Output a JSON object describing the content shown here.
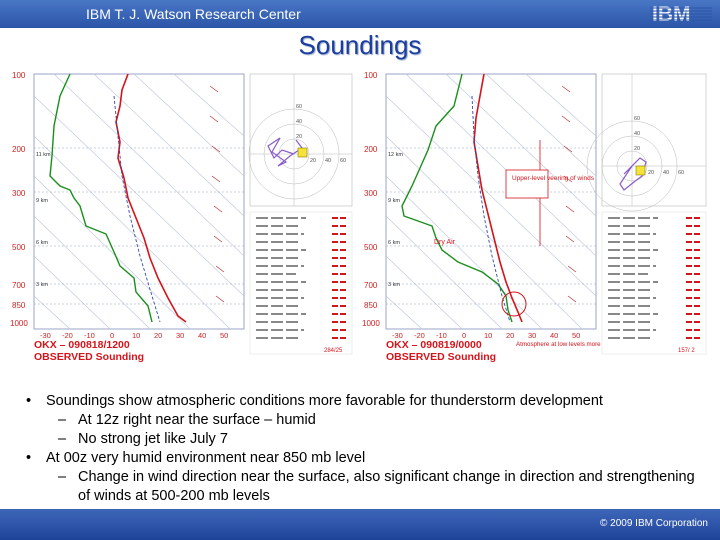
{
  "header": {
    "org": "IBM T. J. Watson Research Center",
    "logo_text": "IBM",
    "title": "Soundings"
  },
  "soundings": [
    {
      "station_label": "OKX – 090818/1200",
      "observed_label": "OBSERVED Sounding",
      "pressure_ticks": [
        "100",
        "200",
        "300",
        "500",
        "700",
        "850",
        "1000"
      ],
      "height_labels": [
        "11 km",
        "9 km",
        "6 km",
        "3 km"
      ],
      "temp_ticks": [
        "-30",
        "-20",
        "-10",
        "0",
        "10",
        "20",
        "30",
        "40",
        "50"
      ],
      "hodograph_rings": [
        "60",
        "40",
        "20",
        "20",
        "40",
        "60"
      ],
      "footer_value": "284/25",
      "annotations": []
    },
    {
      "station_label": "OKX – 090819/0000",
      "observed_label": "OBSERVED Sounding",
      "pressure_ticks": [
        "100",
        "200",
        "300",
        "500",
        "700",
        "850",
        "1000"
      ],
      "height_labels": [
        "12 km",
        "9 km",
        "6 km",
        "3 km"
      ],
      "temp_ticks": [
        "-30",
        "-20",
        "-10",
        "0",
        "10",
        "20",
        "30",
        "40",
        "50"
      ],
      "hodograph_rings": [
        "60",
        "40",
        "20",
        "20",
        "40",
        "60"
      ],
      "footer_value": "157/ 2",
      "annotations": [
        "Upper-level veering of winds",
        "Dry Air",
        "Atmosphere at low levels more saturated"
      ]
    }
  ],
  "bullets": [
    {
      "text": "Soundings show atmospheric conditions more favorable for thunderstorm development",
      "subs": [
        "At 12z right near the surface – humid",
        "No strong jet like July 7"
      ]
    },
    {
      "text": "At 00z very humid environment near 850 mb level",
      "subs": [
        "Change in wind direction near the surface, also significant change in direction and strengthening of winds at 500-200 mb levels"
      ]
    }
  ],
  "footer": {
    "copyright": "© 2009 IBM Corporation"
  },
  "colors": {
    "header_blue": "#2b56a8",
    "title_blue": "#1a3da0",
    "temperature": "#d4141b",
    "dewpoint": "#1a8f1a",
    "hodograph": "#8a5cc8",
    "station_label": "#d4141b"
  }
}
